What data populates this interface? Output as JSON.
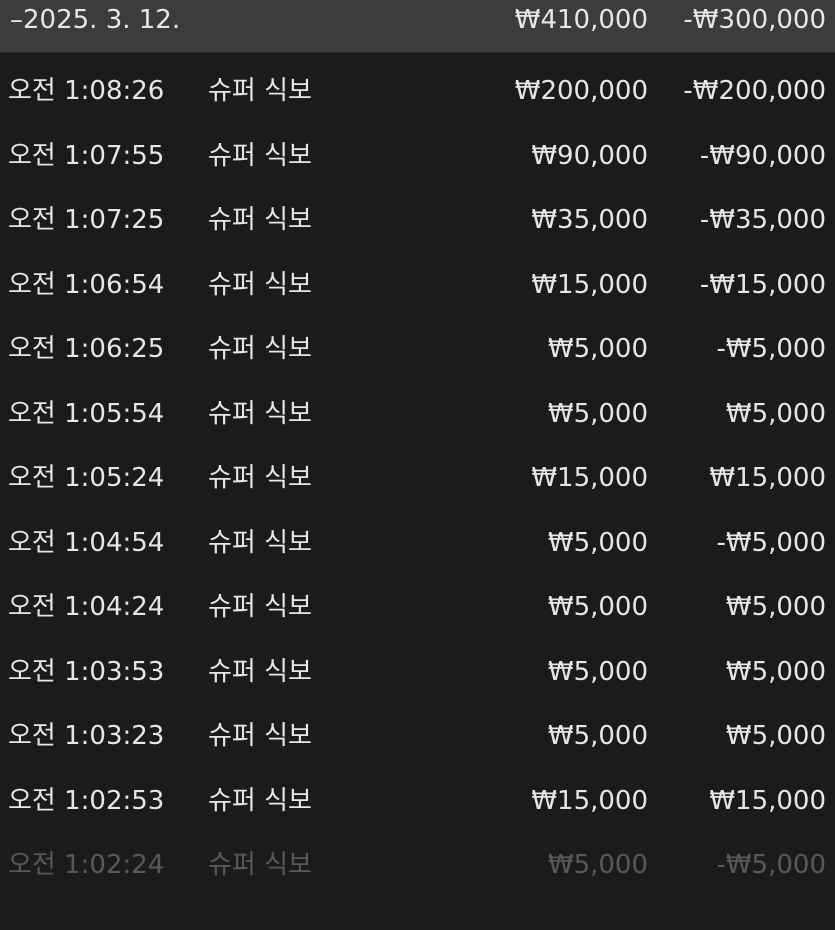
{
  "group": {
    "date": "–2025. 3. 12.",
    "amount": "₩410,000",
    "balance": "-₩300,000"
  },
  "rows": [
    {
      "time": "오전 1:08:26",
      "name": "슈퍼 식보",
      "amount": "₩200,000",
      "balance": "-₩200,000"
    },
    {
      "time": "오전 1:07:55",
      "name": "슈퍼 식보",
      "amount": "₩90,000",
      "balance": "-₩90,000"
    },
    {
      "time": "오전 1:07:25",
      "name": "슈퍼 식보",
      "amount": "₩35,000",
      "balance": "-₩35,000"
    },
    {
      "time": "오전 1:06:54",
      "name": "슈퍼 식보",
      "amount": "₩15,000",
      "balance": "-₩15,000"
    },
    {
      "time": "오전 1:06:25",
      "name": "슈퍼 식보",
      "amount": "₩5,000",
      "balance": "-₩5,000"
    },
    {
      "time": "오전 1:05:54",
      "name": "슈퍼 식보",
      "amount": "₩5,000",
      "balance": "₩5,000"
    },
    {
      "time": "오전 1:05:24",
      "name": "슈퍼 식보",
      "amount": "₩15,000",
      "balance": "₩15,000"
    },
    {
      "time": "오전 1:04:54",
      "name": "슈퍼 식보",
      "amount": "₩5,000",
      "balance": "-₩5,000"
    },
    {
      "time": "오전 1:04:24",
      "name": "슈퍼 식보",
      "amount": "₩5,000",
      "balance": "₩5,000"
    },
    {
      "time": "오전 1:03:53",
      "name": "슈퍼 식보",
      "amount": "₩5,000",
      "balance": "₩5,000"
    },
    {
      "time": "오전 1:03:23",
      "name": "슈퍼 식보",
      "amount": "₩5,000",
      "balance": "₩5,000"
    },
    {
      "time": "오전 1:02:53",
      "name": "슈퍼 식보",
      "amount": "₩15,000",
      "balance": "₩15,000"
    },
    {
      "time": "오전 1:02:24",
      "name": "슈퍼 식보",
      "amount": "₩5,000",
      "balance": "-₩5,000"
    }
  ]
}
